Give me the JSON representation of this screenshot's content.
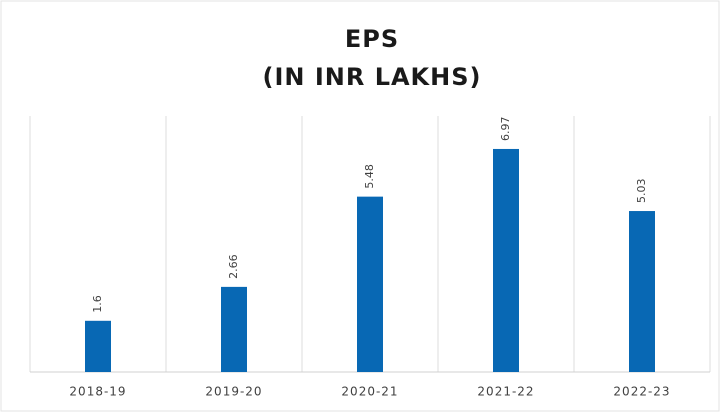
{
  "chart_data": {
    "type": "bar",
    "title": "EPS",
    "subtitle": "(IN INR LAKHS)",
    "categories": [
      "2018-19",
      "2019-20",
      "2020-21",
      "2021-22",
      "2022-23"
    ],
    "values": [
      1.6,
      2.66,
      5.48,
      6.97,
      5.03
    ],
    "color": "#0868b4",
    "ylim": [
      0,
      8
    ]
  }
}
